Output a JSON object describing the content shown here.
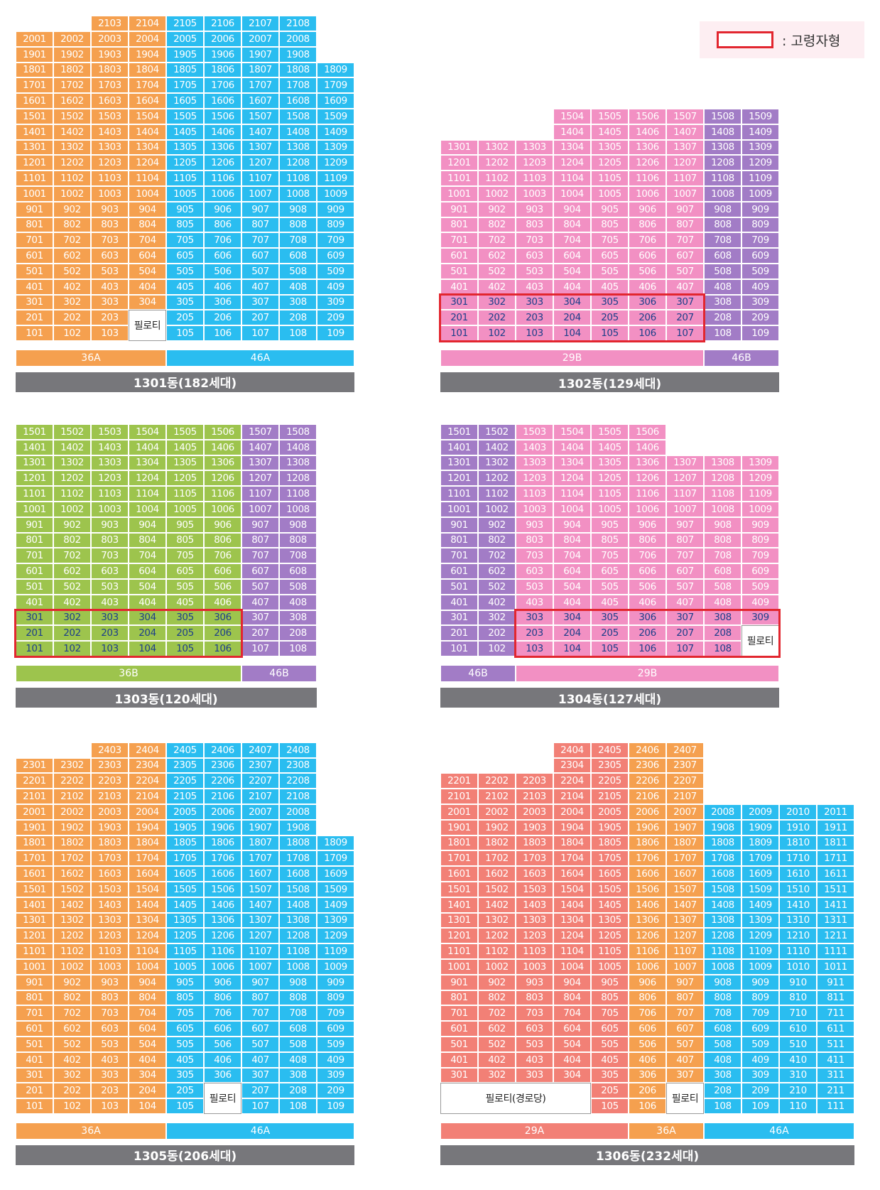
{
  "legend": {
    "label": ": 고령자형",
    "color": "#e2262f"
  },
  "colors": {
    "36A": "#f5a04f",
    "46A": "#2abdf0",
    "29B": "#f290c3",
    "46B": "#a27cc6",
    "36B": "#9dc44d",
    "29A": "#f28076"
  },
  "buildings": [
    {
      "id": "1301",
      "title": "1301동(182세대)",
      "floors": 21,
      "lines": [
        {
          "unit": 1,
          "color": "o",
          "top": 20
        },
        {
          "unit": 2,
          "color": "o",
          "top": 20
        },
        {
          "unit": 3,
          "color": "o",
          "top": 21
        },
        {
          "unit": 4,
          "color": "o",
          "top": 21
        },
        {
          "unit": 5,
          "color": "b",
          "top": 21
        },
        {
          "unit": 6,
          "color": "b",
          "top": 21
        },
        {
          "unit": 7,
          "color": "b",
          "top": 21
        },
        {
          "unit": 8,
          "color": "b",
          "top": 21
        },
        {
          "unit": 9,
          "color": "b",
          "top": 18
        }
      ],
      "pilotis": [
        {
          "label": "필로티",
          "lines": [
            4
          ],
          "from": 1,
          "to": 2
        }
      ],
      "highlight": [],
      "types": [
        {
          "label": "36A",
          "color": "o",
          "span": 4
        },
        {
          "label": "46A",
          "color": "b",
          "span": 5
        }
      ]
    },
    {
      "id": "1302",
      "title": "1302동(129세대)",
      "floors": 15,
      "lines": [
        {
          "unit": 1,
          "color": "p",
          "top": 13
        },
        {
          "unit": 2,
          "color": "p",
          "top": 13
        },
        {
          "unit": 3,
          "color": "p",
          "top": 13
        },
        {
          "unit": 4,
          "color": "p",
          "top": 15
        },
        {
          "unit": 5,
          "color": "p",
          "top": 15
        },
        {
          "unit": 6,
          "color": "p",
          "top": 15
        },
        {
          "unit": 7,
          "color": "p",
          "top": 15
        },
        {
          "unit": 8,
          "color": "u",
          "top": 15
        },
        {
          "unit": 9,
          "color": "u",
          "top": 15
        }
      ],
      "pilotis": [],
      "highlight": [
        {
          "lines": [
            1,
            7
          ],
          "floors": [
            1,
            3
          ]
        }
      ],
      "types": [
        {
          "label": "29B",
          "color": "p",
          "span": 7
        },
        {
          "label": "46B",
          "color": "u",
          "span": 2
        }
      ]
    },
    {
      "id": "1303",
      "title": "1303동(120세대)",
      "floors": 15,
      "lines": [
        {
          "unit": 1,
          "color": "g",
          "top": 15
        },
        {
          "unit": 2,
          "color": "g",
          "top": 15
        },
        {
          "unit": 3,
          "color": "g",
          "top": 15
        },
        {
          "unit": 4,
          "color": "g",
          "top": 15
        },
        {
          "unit": 5,
          "color": "g",
          "top": 15
        },
        {
          "unit": 6,
          "color": "g",
          "top": 15
        },
        {
          "unit": 7,
          "color": "u",
          "top": 15
        },
        {
          "unit": 8,
          "color": "u",
          "top": 15
        }
      ],
      "pilotis": [],
      "highlight": [
        {
          "lines": [
            1,
            6
          ],
          "floors": [
            1,
            3
          ]
        }
      ],
      "types": [
        {
          "label": "36B",
          "color": "g",
          "span": 6
        },
        {
          "label": "46B",
          "color": "u",
          "span": 2
        }
      ]
    },
    {
      "id": "1304",
      "title": "1304동(127세대)",
      "floors": 15,
      "lines": [
        {
          "unit": 1,
          "color": "u",
          "top": 15
        },
        {
          "unit": 2,
          "color": "u",
          "top": 15
        },
        {
          "unit": 3,
          "color": "p",
          "top": 15
        },
        {
          "unit": 4,
          "color": "p",
          "top": 15
        },
        {
          "unit": 5,
          "color": "p",
          "top": 15
        },
        {
          "unit": 6,
          "color": "p",
          "top": 15
        },
        {
          "unit": 7,
          "color": "p",
          "top": 13
        },
        {
          "unit": 8,
          "color": "p",
          "top": 13
        },
        {
          "unit": 9,
          "color": "p",
          "top": 13
        }
      ],
      "pilotis": [
        {
          "label": "필로티",
          "lines": [
            9
          ],
          "from": 1,
          "to": 2
        }
      ],
      "highlight": [
        {
          "lines": [
            3,
            9
          ],
          "floors": [
            1,
            3
          ]
        }
      ],
      "types": [
        {
          "label": "46B",
          "color": "u",
          "span": 2
        },
        {
          "label": "29B",
          "color": "p",
          "span": 7
        }
      ]
    },
    {
      "id": "1305",
      "title": "1305동(206세대)",
      "floors": 24,
      "lines": [
        {
          "unit": 1,
          "color": "o",
          "top": 23
        },
        {
          "unit": 2,
          "color": "o",
          "top": 23
        },
        {
          "unit": 3,
          "color": "o",
          "top": 24
        },
        {
          "unit": 4,
          "color": "o",
          "top": 24
        },
        {
          "unit": 5,
          "color": "b",
          "top": 24
        },
        {
          "unit": 6,
          "color": "b",
          "top": 24
        },
        {
          "unit": 7,
          "color": "b",
          "top": 24
        },
        {
          "unit": 8,
          "color": "b",
          "top": 24
        },
        {
          "unit": 9,
          "color": "b",
          "top": 18
        }
      ],
      "pilotis": [
        {
          "label": "필로티",
          "lines": [
            6
          ],
          "from": 1,
          "to": 2
        }
      ],
      "highlight": [],
      "types": [
        {
          "label": "36A",
          "color": "o",
          "span": 4
        },
        {
          "label": "46A",
          "color": "b",
          "span": 5
        }
      ]
    },
    {
      "id": "1306",
      "title": "1306동(232세대)",
      "floors": 24,
      "lines": [
        {
          "unit": 1,
          "color": "r",
          "top": 22
        },
        {
          "unit": 2,
          "color": "r",
          "top": 22
        },
        {
          "unit": 3,
          "color": "r",
          "top": 22
        },
        {
          "unit": 4,
          "color": "r",
          "top": 24
        },
        {
          "unit": 5,
          "color": "r",
          "top": 24
        },
        {
          "unit": 6,
          "color": "o",
          "top": 24
        },
        {
          "unit": 7,
          "color": "o",
          "top": 24
        },
        {
          "unit": 8,
          "color": "b",
          "top": 20
        },
        {
          "unit": 9,
          "color": "b",
          "top": 20
        },
        {
          "unit": 10,
          "color": "b",
          "top": 20
        },
        {
          "unit": 11,
          "color": "b",
          "top": 20
        }
      ],
      "pilotis": [
        {
          "label": "필로티(경로당)",
          "lines": [
            1,
            4
          ],
          "from": 1,
          "to": 2
        },
        {
          "label": "필로티",
          "lines": [
            7
          ],
          "from": 1,
          "to": 2
        }
      ],
      "highlight": [],
      "types": [
        {
          "label": "29A",
          "color": "r",
          "span": 5
        },
        {
          "label": "36A",
          "color": "o",
          "span": 2
        },
        {
          "label": "46A",
          "color": "b",
          "span": 4
        }
      ]
    }
  ]
}
